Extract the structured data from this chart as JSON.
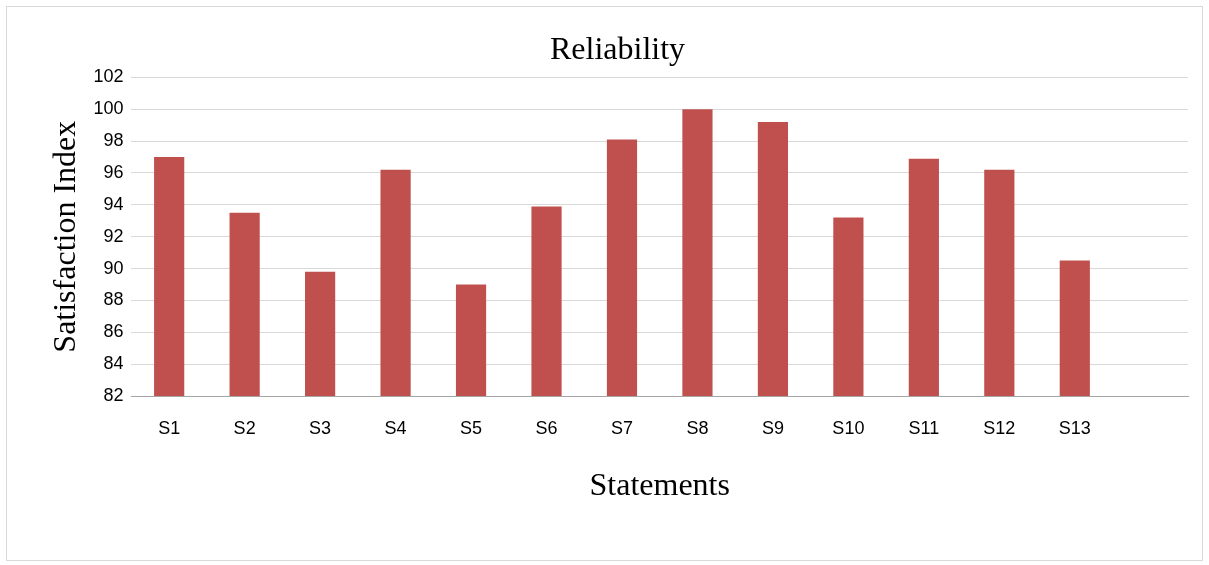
{
  "chart_data": {
    "type": "bar",
    "title": "Reliability",
    "xlabel": "Statements",
    "ylabel": "Satisfaction Index",
    "categories": [
      "S1",
      "S2",
      "S3",
      "S4",
      "S5",
      "S6",
      "S7",
      "S8",
      "S9",
      "S10",
      "S11",
      "S12",
      "S13",
      null
    ],
    "values": [
      97.0,
      93.5,
      89.8,
      96.2,
      89.0,
      93.9,
      98.1,
      100,
      99.2,
      93.2,
      96.9,
      96.2,
      90.5,
      null
    ],
    "color": "#c0504d",
    "ylim": [
      82,
      102
    ],
    "yticks": [
      82,
      84,
      86,
      88,
      90,
      92,
      94,
      96,
      98,
      100,
      102
    ],
    "grid": "y",
    "legend": false
  }
}
